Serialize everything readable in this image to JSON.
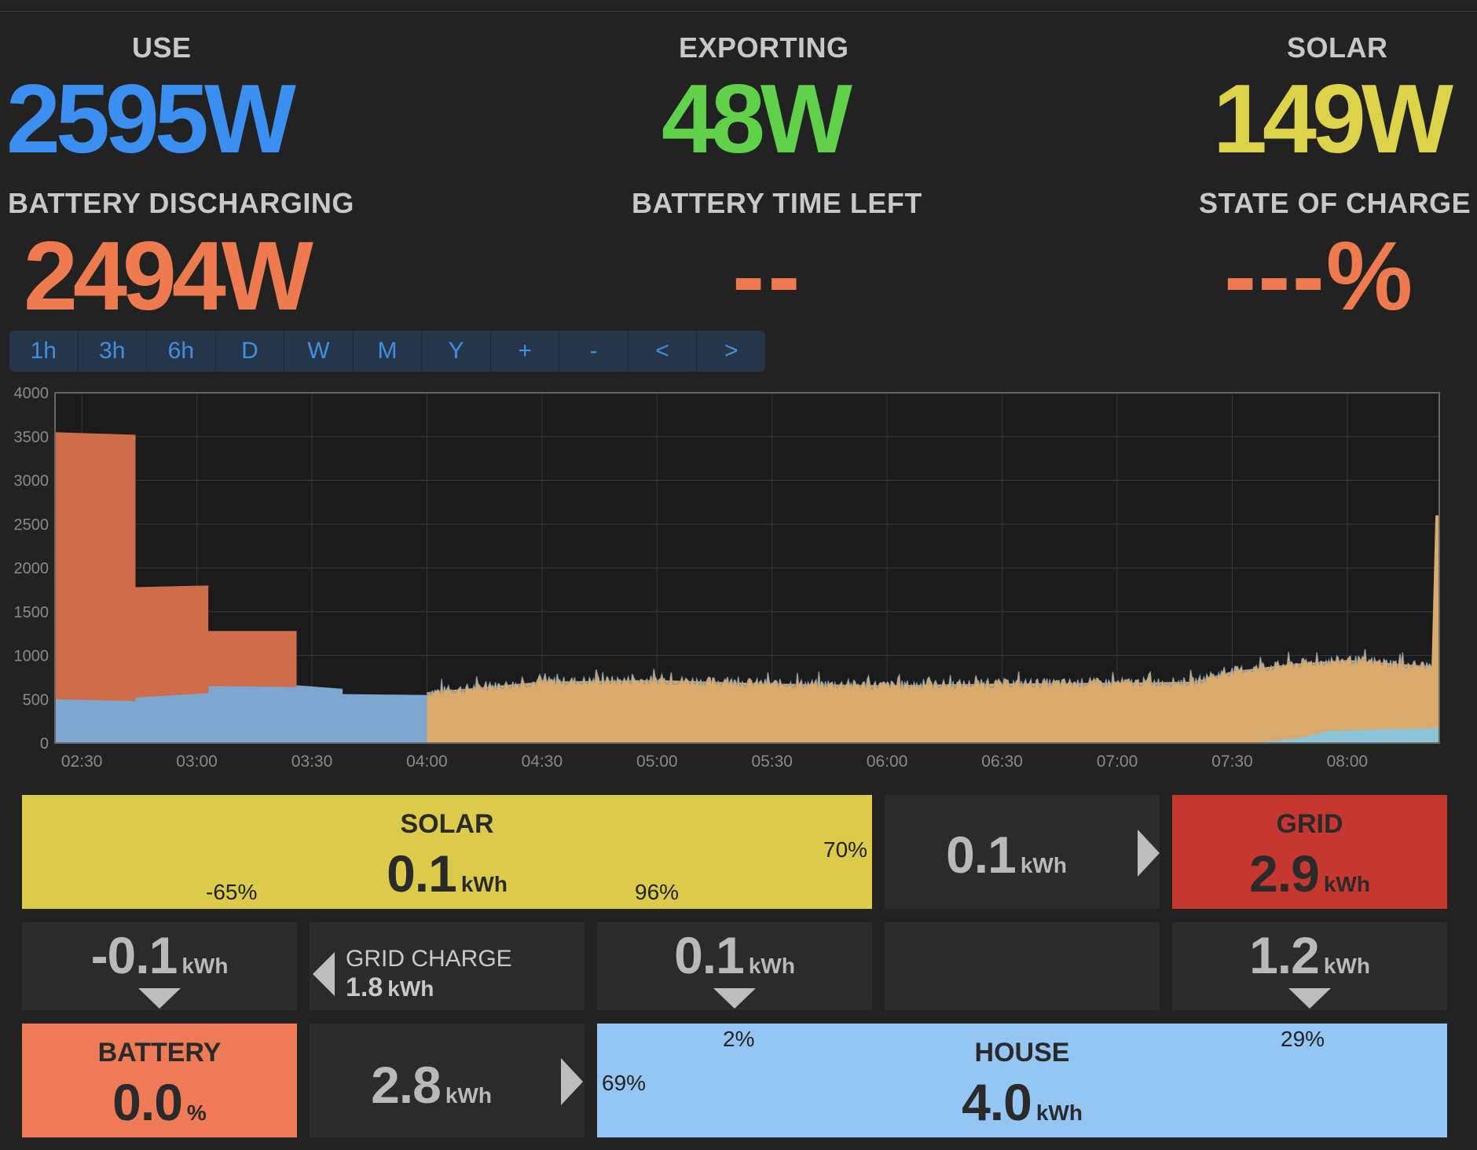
{
  "stats": {
    "use": {
      "label": "USE",
      "value": "2595W",
      "color": "#3a8ff0"
    },
    "exporting": {
      "label": "EXPORTING",
      "value": "48W",
      "color": "#5fd14a"
    },
    "solar": {
      "label": "SOLAR",
      "value": "149W",
      "color": "#ddd24a"
    },
    "battery_discharging": {
      "label": "BATTERY DISCHARGING",
      "value": "2494W",
      "color": "#ee7a4f"
    },
    "battery_time_left": {
      "label": "BATTERY TIME LEFT",
      "value": "--",
      "color": "#ee7a4f"
    },
    "state_of_charge": {
      "label": "STATE OF CHARGE",
      "value": "---%",
      "color": "#ee7a4f"
    }
  },
  "range_buttons": [
    "1h",
    "3h",
    "6h",
    "D",
    "W",
    "M",
    "Y",
    "+",
    "-",
    "<",
    ">"
  ],
  "chart_data": {
    "type": "area",
    "y_ticks": [
      "4000",
      "3500",
      "3000",
      "2500",
      "2000",
      "1500",
      "1000",
      "500",
      "0"
    ],
    "x_ticks": [
      "02:30",
      "03:00",
      "03:30",
      "04:00",
      "04:30",
      "05:00",
      "05:30",
      "06:00",
      "06:30",
      "07:00",
      "07:30",
      "08:00"
    ],
    "ylim": [
      0,
      4000
    ],
    "xlim": [
      "02:23",
      "08:24"
    ],
    "grid": true,
    "series": [
      {
        "color": "#7da7cf",
        "points": [
          [
            "02:23",
            500
          ],
          [
            "02:44",
            480
          ],
          [
            "02:44",
            520
          ],
          [
            "03:03",
            570
          ],
          [
            "03:03",
            650
          ],
          [
            "03:26",
            640
          ],
          [
            "03:26",
            660
          ],
          [
            "03:38",
            620
          ],
          [
            "03:38",
            560
          ],
          [
            "04:00",
            550
          ],
          [
            "04:00",
            0
          ]
        ]
      },
      {
        "color": "#cf6c4a",
        "points": [
          [
            "02:23",
            3550
          ],
          [
            "02:44",
            3520
          ],
          [
            "02:44",
            1780
          ],
          [
            "03:03",
            1800
          ],
          [
            "03:03",
            1280
          ],
          [
            "03:26",
            1280
          ],
          [
            "03:26",
            0
          ]
        ]
      },
      {
        "color": "#d9aa6c",
        "points": [
          [
            "04:00",
            580
          ],
          [
            "04:30",
            700
          ],
          [
            "05:00",
            720
          ],
          [
            "05:30",
            680
          ],
          [
            "06:00",
            660
          ],
          [
            "06:30",
            680
          ],
          [
            "07:00",
            690
          ],
          [
            "07:20",
            700
          ],
          [
            "07:30",
            820
          ],
          [
            "07:45",
            900
          ],
          [
            "08:00",
            950
          ],
          [
            "08:15",
            900
          ],
          [
            "08:22",
            880
          ],
          [
            "08:23",
            2600
          ],
          [
            "08:24",
            2600
          ]
        ]
      },
      {
        "color": "#8cc4d8",
        "points": [
          [
            "07:35",
            0
          ],
          [
            "07:48",
            60
          ],
          [
            "07:55",
            140
          ],
          [
            "08:10",
            160
          ],
          [
            "08:24",
            170
          ]
        ]
      }
    ]
  },
  "flow": {
    "solar": {
      "title": "SOLAR",
      "amount": "0.1",
      "unit": "kWh",
      "pct_left": "-65%",
      "pct_mid": "96%",
      "pct_right": "70%",
      "color": "#dccb4a"
    },
    "export": {
      "amount": "0.1",
      "unit": "kWh"
    },
    "grid": {
      "title": "GRID",
      "amount": "2.9",
      "unit": "kWh",
      "color": "#c6372f"
    },
    "battery_flow": {
      "amount": "-0.1",
      "unit": "kWh"
    },
    "grid_charge": {
      "label": "GRID CHARGE",
      "amount": "1.8",
      "unit": "kWh"
    },
    "solar_to_house": {
      "amount": "0.1",
      "unit": "kWh"
    },
    "grid_to_house": {
      "amount": "1.2",
      "unit": "kWh"
    },
    "battery": {
      "title": "BATTERY",
      "amount": "0.0",
      "unit": "%",
      "color": "#ee7a56"
    },
    "battery_to_house": {
      "amount": "2.8",
      "unit": "kWh"
    },
    "house": {
      "title": "HOUSE",
      "amount": "4.0",
      "unit": "kWh",
      "pct_left": "69%",
      "pct_mid": "2%",
      "pct_right": "29%",
      "color": "#93c6f2"
    }
  }
}
